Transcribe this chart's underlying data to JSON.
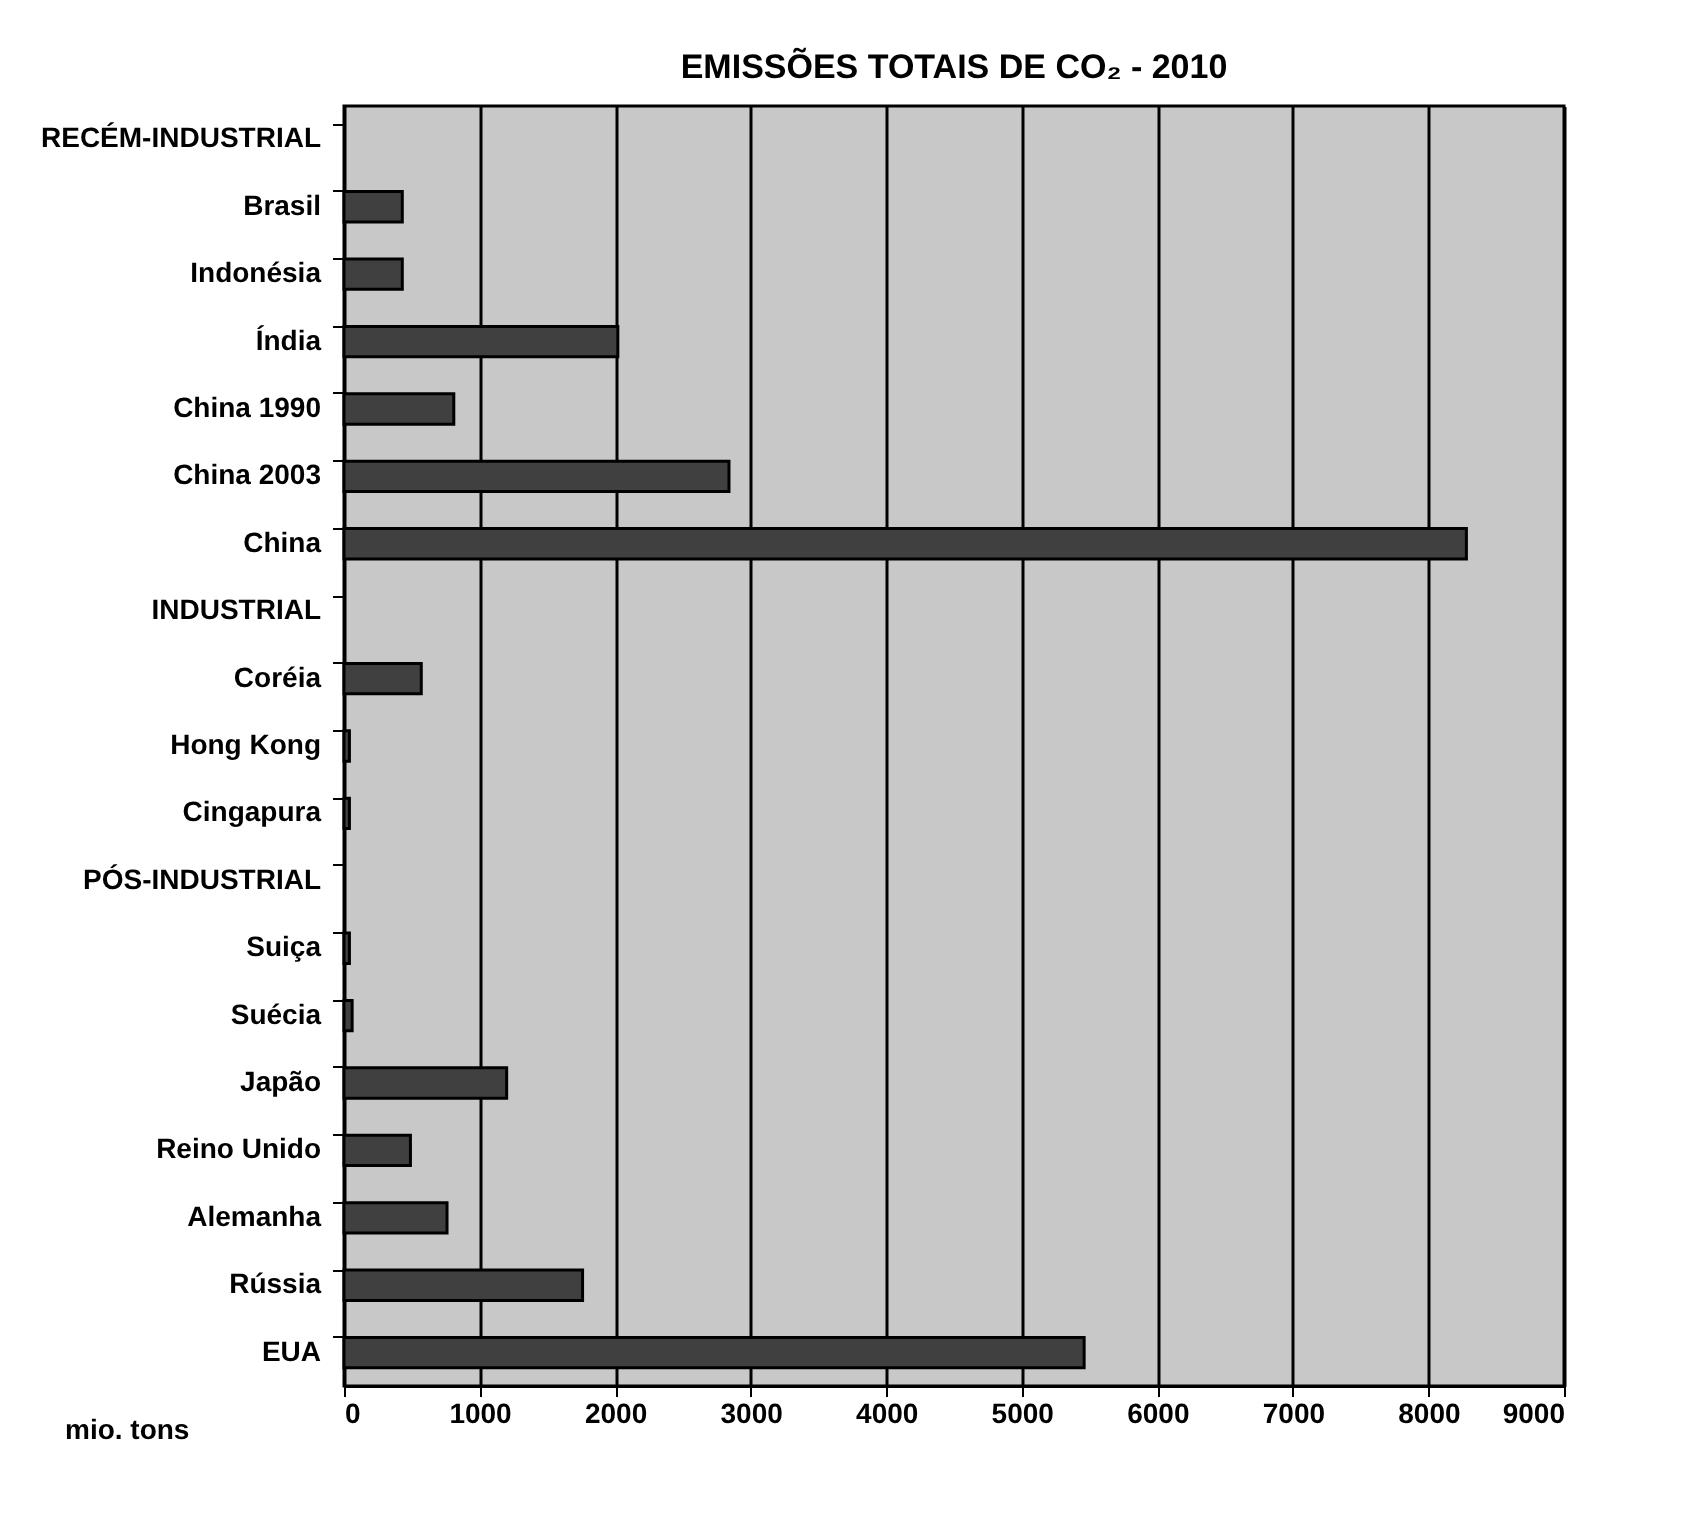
{
  "chart_data": {
    "type": "bar",
    "orientation": "horizontal",
    "title": "EMISSÕES TOTAIS DE CO₂ - 2010",
    "xlabel": "mio. tons",
    "categories": [
      "RECÉM-INDUSTRIAL",
      "Brasil",
      "Indonésia",
      "Índia",
      "China 1990",
      "China 2003",
      "China",
      "INDUSTRIAL",
      "Coréia",
      "Hong Kong",
      "Cingapura",
      "PÓS-INDUSTRIAL",
      "Suiça",
      "Suécia",
      "Japão",
      "Reino Unido",
      "Alemanha",
      "Rússia",
      "EUA"
    ],
    "values": [
      null,
      430,
      430,
      2020,
      810,
      2840,
      8280,
      null,
      570,
      40,
      40,
      null,
      40,
      60,
      1200,
      490,
      760,
      1760,
      5460
    ],
    "color": "#404040",
    "xlim": [
      0,
      9000
    ],
    "xticks": [
      0,
      1000,
      2000,
      3000,
      4000,
      5000,
      6000,
      7000,
      8000,
      9000
    ],
    "grid": "x"
  }
}
